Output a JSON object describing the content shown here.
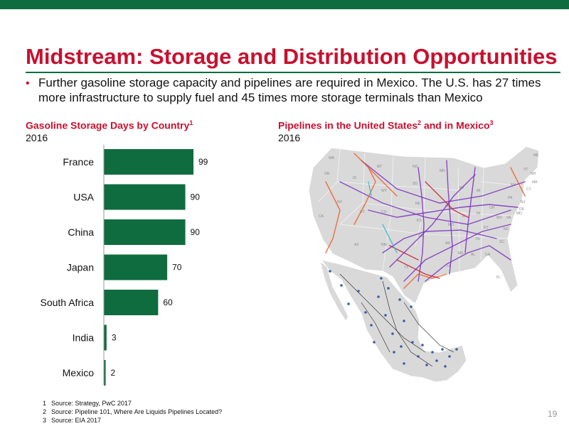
{
  "slide": {
    "title": "Midstream: Storage and Distribution Opportunities",
    "bullet": "Further gasoline storage capacity and pipelines are required in Mexico. The U.S. has 27 times more infrastructure to supply fuel and 45 times more storage terminals than Mexico",
    "page_number": "19"
  },
  "left_panel": {
    "title": "Gasoline Storage Days by Country",
    "title_ref": "1",
    "year": "2016"
  },
  "right_panel": {
    "title_part1": "Pipelines in the United States",
    "ref1": "2",
    "title_part2": " and in Mexico",
    "ref2": "3",
    "year": "2016",
    "state_labels": [
      "WA",
      "OR",
      "ID",
      "MT",
      "ND",
      "SD",
      "WY",
      "NE",
      "NV",
      "UT",
      "CO",
      "KS",
      "AZ",
      "NM",
      "OK",
      "TX",
      "MN",
      "IA",
      "MO",
      "AR",
      "LA",
      "WI",
      "IL",
      "MI",
      "IN",
      "OH",
      "KY",
      "TN",
      "MS",
      "AL",
      "GA",
      "FL",
      "SC",
      "NC",
      "VA",
      "WV",
      "PA",
      "NY",
      "ME",
      "VT",
      "NH",
      "MA",
      "CT",
      "NJ",
      "DE",
      "MD",
      "CA"
    ]
  },
  "colors": {
    "brand_green": "#0f6c3e",
    "title_red": "#c8102e",
    "bar_green": "#0f6c3e",
    "pipeline_purple": "#7b2fbe",
    "pipeline_orange": "#f05a28",
    "pipeline_red": "#c41e3a",
    "pipeline_cyan": "#3bb8d6",
    "mexico_point_blue": "#3a5ea8"
  },
  "chart_data": {
    "type": "bar",
    "orientation": "horizontal",
    "title": "Gasoline Storage Days by Country",
    "subtitle": "2016",
    "categories": [
      "France",
      "USA",
      "China",
      "Japan",
      "South Africa",
      "India",
      "Mexico"
    ],
    "values": [
      99,
      90,
      90,
      70,
      60,
      3,
      2
    ],
    "xlim": [
      0,
      110
    ],
    "grid": false,
    "data_labels": true
  },
  "footnotes": [
    {
      "num": "1",
      "text": "Source: Strategy, PwC 2017"
    },
    {
      "num": "2",
      "text": "Source: Pipeline 101, Where Are Liquids Pipelines Located?"
    },
    {
      "num": "3",
      "text": "Source: EIA 2017"
    }
  ]
}
